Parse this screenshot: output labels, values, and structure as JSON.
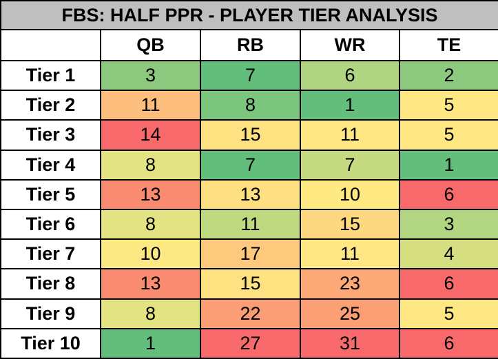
{
  "chart_data": {
    "type": "table",
    "title": "FBS: HALF PPR - PLAYER TIER ANALYSIS",
    "columns": [
      "QB",
      "RB",
      "WR",
      "TE"
    ],
    "rows": [
      {
        "label": "Tier 1",
        "values": [
          3,
          7,
          6,
          2
        ],
        "colors": [
          "#8cc97e",
          "#63be7b",
          "#b0d580",
          "#8cc97e"
        ]
      },
      {
        "label": "Tier 2",
        "values": [
          11,
          8,
          1,
          5
        ],
        "colors": [
          "#fdbd7c",
          "#7cc57d",
          "#63be7b",
          "#ffe884"
        ]
      },
      {
        "label": "Tier 3",
        "values": [
          14,
          15,
          11,
          5
        ],
        "colors": [
          "#f8696b",
          "#fee282",
          "#ffe884",
          "#ffe884"
        ]
      },
      {
        "label": "Tier 4",
        "values": [
          8,
          7,
          7,
          1
        ],
        "colors": [
          "#e3e383",
          "#63be7b",
          "#c6db81",
          "#63be7b"
        ]
      },
      {
        "label": "Tier 5",
        "values": [
          13,
          13,
          10,
          6
        ],
        "colors": [
          "#f98b70",
          "#fedf81",
          "#fee983",
          "#f8696b"
        ]
      },
      {
        "label": "Tier 6",
        "values": [
          8,
          11,
          15,
          3
        ],
        "colors": [
          "#e3e383",
          "#bfd980",
          "#fed880",
          "#b1d580"
        ]
      },
      {
        "label": "Tier 7",
        "values": [
          10,
          17,
          11,
          4
        ],
        "colors": [
          "#fde983",
          "#fdc97d",
          "#ffe884",
          "#d5df82"
        ]
      },
      {
        "label": "Tier 8",
        "values": [
          13,
          15,
          23,
          6
        ],
        "colors": [
          "#f98b70",
          "#fee282",
          "#fca977",
          "#f8696b"
        ]
      },
      {
        "label": "Tier 9",
        "values": [
          8,
          22,
          25,
          5
        ],
        "colors": [
          "#e3e383",
          "#fb9d75",
          "#fb9f75",
          "#ffe884"
        ]
      },
      {
        "label": "Tier 10",
        "values": [
          1,
          27,
          31,
          6
        ],
        "colors": [
          "#63be7b",
          "#f8696b",
          "#f8696b",
          "#f8696b"
        ]
      }
    ]
  }
}
